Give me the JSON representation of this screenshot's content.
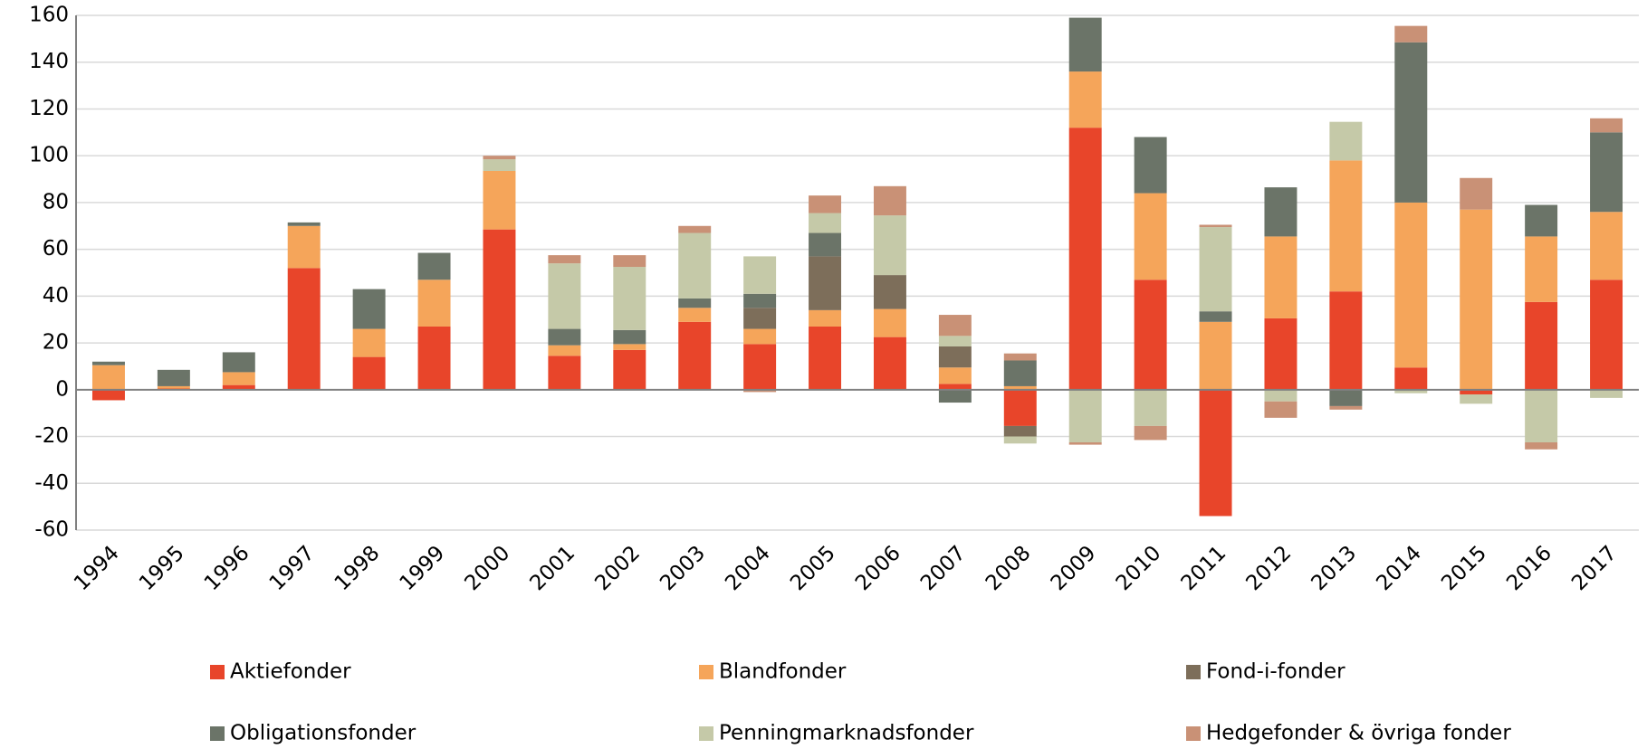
{
  "chart_data": {
    "type": "bar",
    "stacked": true,
    "categories": [
      "1994",
      "1995",
      "1996",
      "1997",
      "1998",
      "1999",
      "2000",
      "2001",
      "2002",
      "2003",
      "2004",
      "2005",
      "2006",
      "2007",
      "2008",
      "2009",
      "2010",
      "2011",
      "2012",
      "2013",
      "2014",
      "2015",
      "2016",
      "2017"
    ],
    "series": [
      {
        "name": "Aktiefonder",
        "color": "#e8452a",
        "values": [
          -4.5,
          0.5,
          2,
          52,
          14,
          27,
          68.5,
          14.5,
          17,
          29,
          19.5,
          27,
          22.5,
          2.5,
          -15.5,
          112,
          47,
          -54,
          30.5,
          42,
          9.5,
          -2,
          37.5,
          47
        ]
      },
      {
        "name": "Blandfonder",
        "color": "#f5a55a",
        "values": [
          10.5,
          1,
          5.5,
          18,
          12,
          20,
          25,
          4.5,
          2.5,
          6,
          6.5,
          7,
          12,
          7,
          1.5,
          24,
          37,
          29,
          35,
          56,
          70.5,
          77,
          28,
          29
        ]
      },
      {
        "name": "Fond-i-fonder",
        "color": "#7d6e5a",
        "values": [
          0,
          0,
          0,
          0,
          0,
          0,
          0,
          0,
          0,
          0,
          9,
          23,
          14.5,
          9,
          -4.5,
          0,
          0,
          0,
          0,
          0,
          0,
          0,
          0,
          0
        ]
      },
      {
        "name": "Obligationsfonder",
        "color": "#6b7468",
        "values": [
          1.5,
          7,
          8.5,
          1.5,
          17,
          11.5,
          0,
          7,
          6,
          4,
          6,
          10,
          0,
          -5.5,
          11,
          23,
          24,
          4.5,
          21,
          -7,
          68.5,
          0,
          13.5,
          34
        ]
      },
      {
        "name": "Penningmarknadsfonder",
        "color": "#c5c9a8",
        "values": [
          0,
          0,
          0,
          0,
          0,
          0,
          5,
          28,
          27,
          28,
          16,
          8.5,
          25.5,
          4.5,
          -3,
          -22.5,
          -15.5,
          36,
          -5,
          16.5,
          -1.5,
          -4,
          -22.5,
          -3.5
        ]
      },
      {
        "name": "Hedgefonder & övriga fonder",
        "color": "#c99176",
        "values": [
          0,
          0,
          0,
          0,
          0,
          0,
          1.5,
          3.5,
          5,
          3,
          -1,
          7.5,
          12.5,
          9,
          3,
          -1,
          -6,
          1,
          -7,
          -1.5,
          7,
          13.5,
          -3,
          6
        ]
      }
    ],
    "ylim": [
      -60,
      160
    ],
    "yticks": [
      -60,
      -40,
      -20,
      0,
      20,
      40,
      60,
      80,
      100,
      120,
      140,
      160
    ],
    "grid": true
  }
}
